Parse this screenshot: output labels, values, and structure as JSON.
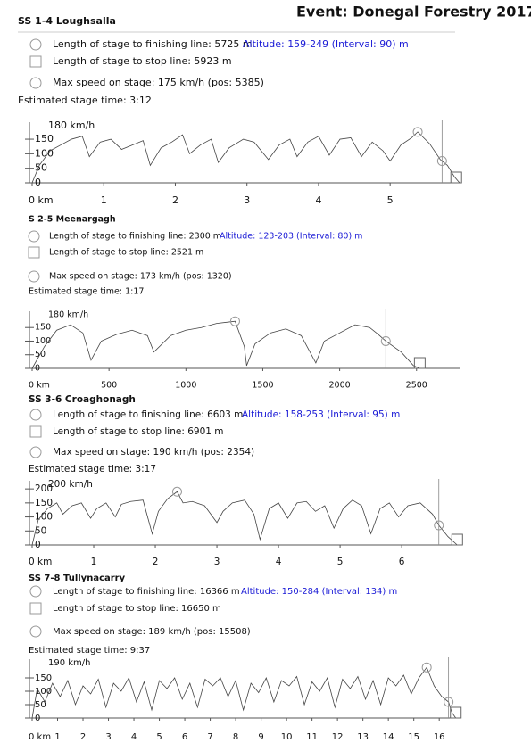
{
  "title": "Event: Donegal Forestry 2017",
  "chart_data": [
    {
      "type": "line",
      "title": "SS 1-4 Loughsalla",
      "finish_text": "Length of stage to finishing line: 5725 m",
      "altitude_text": "Altitude: 159-249 (Interval: 90) m",
      "stop_text": "Length of stage to stop line: 5923 m",
      "max_text": "Max speed on stage: 175 km/h (pos: 5385)",
      "time_text": "Estimated stage time: 3:12",
      "ylabel": "180 km/h",
      "x": [
        0,
        0.1,
        0.25,
        0.4,
        0.55,
        0.7,
        0.8,
        0.95,
        1.1,
        1.25,
        1.4,
        1.55,
        1.65,
        1.8,
        1.95,
        2.1,
        2.2,
        2.35,
        2.5,
        2.6,
        2.75,
        2.95,
        3.1,
        3.3,
        3.45,
        3.6,
        3.7,
        3.85,
        4.0,
        4.15,
        4.3,
        4.45,
        4.6,
        4.75,
        4.9,
        5.0,
        5.15,
        5.3,
        5.385,
        5.55,
        5.7,
        5.8,
        5.9,
        5.97
      ],
      "values": [
        0,
        60,
        110,
        130,
        150,
        160,
        90,
        140,
        150,
        115,
        130,
        145,
        60,
        120,
        140,
        165,
        100,
        130,
        150,
        70,
        120,
        150,
        140,
        80,
        130,
        150,
        90,
        140,
        160,
        95,
        150,
        155,
        90,
        140,
        110,
        75,
        130,
        155,
        175,
        135,
        80,
        60,
        20,
        0
      ],
      "color": "#444444",
      "finish": 5.725,
      "stop": 5.923,
      "xlim": [
        0,
        5.97
      ],
      "ylim": [
        0,
        190
      ],
      "xticks": [
        {
          "value": 0,
          "label": "0 km"
        },
        1,
        2,
        3,
        4,
        5
      ],
      "yticks": [
        0,
        50,
        100,
        150
      ]
    },
    {
      "type": "line",
      "title": "S 2-5 Meenargagh",
      "finish_text": "Length of stage to finishing line: 2300 m",
      "altitude_text": "Altitude: 123-203 (Interval: 80) m",
      "stop_text": "Length of stage to stop line: 2521 m",
      "max_text": "Max speed on stage: 173 km/h (pos: 1320)",
      "time_text": "Estimated stage time: 1:17",
      "ylabel": "180 km/h",
      "x": [
        0,
        80,
        160,
        250,
        330,
        383,
        450,
        550,
        650,
        750,
        792,
        900,
        1000,
        1100,
        1200,
        1320,
        1380,
        1395,
        1450,
        1550,
        1650,
        1750,
        1845,
        1900,
        2000,
        2100,
        2195,
        2250,
        2300,
        2400,
        2480,
        2521
      ],
      "values": [
        0,
        80,
        140,
        160,
        130,
        30,
        100,
        125,
        140,
        120,
        60,
        120,
        140,
        150,
        165,
        173,
        80,
        10,
        90,
        130,
        145,
        120,
        20,
        100,
        130,
        160,
        150,
        125,
        100,
        60,
        10,
        0
      ],
      "color": "#444444",
      "finish": 2300,
      "stop": 2521,
      "xlim": [
        0,
        2780
      ],
      "ylim": [
        0,
        190
      ],
      "xticks": [
        {
          "value": 0,
          "label": "0 km"
        },
        500,
        1000,
        1500,
        2000,
        2500
      ],
      "yticks": [
        0,
        50,
        100,
        150
      ]
    },
    {
      "type": "line",
      "title": "SS 3-6 Croaghonagh",
      "finish_text": "Length of stage to finishing line: 6603 m",
      "altitude_text": "Altitude: 158-253 (Interval: 95) m",
      "stop_text": "Length of stage to stop line: 6901 m",
      "max_text": "Max speed on stage: 190 km/h (pos: 2354)",
      "time_text": "Estimated stage time: 3:17",
      "ylabel": "200 km/h",
      "x": [
        0,
        0.1,
        0.25,
        0.4,
        0.5,
        0.65,
        0.8,
        0.95,
        1.05,
        1.2,
        1.35,
        1.45,
        1.6,
        1.8,
        1.95,
        2.05,
        2.2,
        2.354,
        2.45,
        2.6,
        2.8,
        3.0,
        3.1,
        3.25,
        3.45,
        3.6,
        3.7,
        3.85,
        4.0,
        4.15,
        4.3,
        4.45,
        4.6,
        4.75,
        4.9,
        5.05,
        5.2,
        5.35,
        5.5,
        5.65,
        5.8,
        5.95,
        6.1,
        6.3,
        6.5,
        6.603,
        6.75,
        6.9
      ],
      "values": [
        0,
        90,
        130,
        150,
        110,
        140,
        150,
        95,
        130,
        150,
        100,
        145,
        155,
        160,
        40,
        120,
        165,
        190,
        150,
        155,
        140,
        80,
        120,
        150,
        160,
        110,
        20,
        130,
        150,
        95,
        150,
        155,
        120,
        140,
        60,
        130,
        160,
        140,
        40,
        130,
        150,
        100,
        140,
        150,
        110,
        70,
        30,
        0
      ],
      "color": "#444444",
      "finish": 6.603,
      "stop": 6.901,
      "xlim": [
        0,
        6.94
      ],
      "ylim": [
        0,
        210
      ],
      "xticks": [
        {
          "value": 0,
          "label": "0 km"
        },
        1,
        2,
        3,
        4,
        5,
        6
      ],
      "yticks": [
        0,
        50,
        100,
        150,
        200
      ]
    },
    {
      "type": "line",
      "title": "SS 7-8 Tullynacarry",
      "finish_text": "Length of stage to finishing line: 16366 m",
      "altitude_text": "Altitude: 150-284 (Interval: 134) m",
      "stop_text": "Length of stage to stop line: 16650 m",
      "max_text": "Max speed on stage: 189 km/h (pos: 15508)",
      "time_text": "Estimated stage time: 9:37",
      "ylabel": "190 km/h",
      "x": [
        0,
        0.2,
        0.5,
        0.8,
        1.1,
        1.4,
        1.7,
        2.0,
        2.3,
        2.6,
        2.9,
        3.2,
        3.5,
        3.8,
        4.1,
        4.4,
        4.7,
        5.0,
        5.3,
        5.6,
        5.9,
        6.2,
        6.5,
        6.8,
        7.1,
        7.4,
        7.7,
        8.0,
        8.3,
        8.6,
        8.9,
        9.2,
        9.5,
        9.8,
        10.1,
        10.4,
        10.7,
        11.0,
        11.3,
        11.6,
        11.9,
        12.2,
        12.5,
        12.8,
        13.1,
        13.4,
        13.7,
        14.0,
        14.3,
        14.6,
        14.9,
        15.2,
        15.508,
        15.8,
        16.1,
        16.366,
        16.5,
        16.65
      ],
      "values": [
        0,
        110,
        60,
        130,
        80,
        140,
        50,
        120,
        90,
        145,
        40,
        130,
        100,
        150,
        60,
        135,
        30,
        140,
        110,
        150,
        70,
        130,
        40,
        145,
        120,
        150,
        80,
        140,
        30,
        130,
        95,
        150,
        60,
        140,
        120,
        155,
        50,
        135,
        100,
        150,
        40,
        145,
        110,
        155,
        70,
        140,
        50,
        150,
        120,
        160,
        90,
        150,
        189,
        120,
        80,
        60,
        20,
        0
      ],
      "color": "#444444",
      "finish": 16.366,
      "stop": 16.65,
      "xlim": [
        0,
        16.8
      ],
      "ylim": [
        0,
        200
      ],
      "xticks": [
        {
          "value": 0,
          "label": "0 km"
        },
        1,
        2,
        3,
        4,
        5,
        6,
        7,
        8,
        9,
        10,
        11,
        12,
        13,
        14,
        15,
        16
      ],
      "yticks": [
        0,
        50,
        100,
        150
      ]
    }
  ]
}
